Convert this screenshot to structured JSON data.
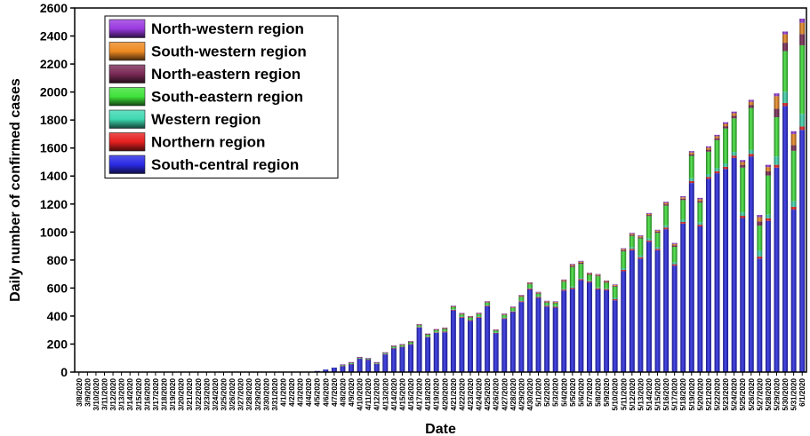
{
  "chart_data": {
    "type": "bar",
    "stacked": true,
    "xlabel": "Date",
    "ylabel": "Daily number of confirmed cases",
    "ylim": [
      0,
      2600
    ],
    "yticks": [
      0,
      200,
      400,
      600,
      800,
      1000,
      1200,
      1400,
      1600,
      1800,
      2000,
      2200,
      2400,
      2600
    ],
    "legend_position": "top-left",
    "categories": [
      "3/8/2020",
      "3/9/2020",
      "3/10/2020",
      "3/11/2020",
      "3/12/2020",
      "3/13/2020",
      "3/14/2020",
      "3/15/2020",
      "3/16/2020",
      "3/17/2020",
      "3/18/2020",
      "3/19/2020",
      "3/20/2020",
      "3/21/2020",
      "3/22/2020",
      "3/23/2020",
      "3/24/2020",
      "3/25/2020",
      "3/26/2020",
      "3/27/2020",
      "3/28/2020",
      "3/29/2020",
      "3/30/2020",
      "3/31/2020",
      "4/1/2020",
      "4/2/2020",
      "4/3/2020",
      "4/4/2020",
      "4/5/2020",
      "4/6/2020",
      "4/7/2020",
      "4/8/2020",
      "4/9/2020",
      "4/10/2020",
      "4/11/2020",
      "4/12/2020",
      "4/13/2020",
      "4/14/2020",
      "4/15/2020",
      "4/16/2020",
      "4/17/2020",
      "4/18/2020",
      "4/19/2020",
      "4/20/2020",
      "4/21/2020",
      "4/22/2020",
      "4/23/2020",
      "4/24/2020",
      "4/25/2020",
      "4/26/2020",
      "4/27/2020",
      "4/28/2020",
      "4/29/2020",
      "4/30/2020",
      "5/1/2020",
      "5/2/2020",
      "5/3/2020",
      "5/4/2020",
      "5/5/2020",
      "5/6/2020",
      "5/7/2020",
      "5/8/2020",
      "5/9/2020",
      "5/10/2020",
      "5/11/2020",
      "5/12/2020",
      "5/13/2020",
      "5/14/2020",
      "5/15/2020",
      "5/16/2020",
      "5/17/2020",
      "5/18/2020",
      "5/19/2020",
      "5/20/2020",
      "5/21/2020",
      "5/22/2020",
      "5/23/2020",
      "5/24/2020",
      "5/25/2020",
      "5/26/2020",
      "5/27/2020",
      "5/28/2020",
      "5/29/2020",
      "5/30/2020",
      "5/31/2020",
      "6/1/2020"
    ],
    "series": [
      {
        "name": "South-central region",
        "color": "#2a2ae6",
        "values": [
          0,
          0,
          0,
          0,
          0,
          0,
          0,
          0,
          0,
          0,
          0,
          0,
          0,
          0,
          0,
          0,
          0,
          0,
          0,
          0,
          0,
          0,
          0,
          0,
          0,
          0,
          0,
          2,
          8,
          18,
          32,
          42,
          55,
          96,
          88,
          58,
          126,
          168,
          178,
          196,
          318,
          248,
          280,
          284,
          440,
          388,
          366,
          388,
          470,
          276,
          380,
          428,
          500,
          590,
          530,
          468,
          460,
          582,
          594,
          656,
          640,
          590,
          584,
          512,
          720,
          870,
          810,
          930,
          870,
          1020,
          760,
          1060,
          1350,
          1040,
          1380,
          1420,
          1450,
          1530,
          1100,
          1540,
          810,
          1080,
          1460,
          1900,
          1160,
          1730
        ]
      },
      {
        "name": "Northern region",
        "color": "#e62020",
        "values": [
          0,
          0,
          0,
          0,
          0,
          0,
          0,
          0,
          0,
          0,
          0,
          0,
          0,
          0,
          0,
          0,
          0,
          0,
          0,
          0,
          0,
          0,
          0,
          0,
          0,
          0,
          0,
          0,
          0,
          0,
          0,
          2,
          3,
          2,
          2,
          2,
          3,
          3,
          3,
          4,
          4,
          4,
          4,
          5,
          5,
          5,
          5,
          5,
          5,
          4,
          5,
          5,
          6,
          6,
          6,
          6,
          6,
          7,
          8,
          8,
          8,
          8,
          8,
          8,
          10,
          10,
          10,
          10,
          10,
          12,
          10,
          12,
          14,
          12,
          14,
          14,
          16,
          16,
          16,
          18,
          16,
          18,
          20,
          22,
          20,
          24
        ]
      },
      {
        "name": "Western region",
        "color": "#3ed8b0",
        "values": [
          0,
          0,
          0,
          0,
          0,
          0,
          0,
          0,
          0,
          0,
          0,
          0,
          0,
          0,
          0,
          0,
          0,
          0,
          0,
          0,
          0,
          0,
          0,
          0,
          0,
          0,
          0,
          0,
          0,
          0,
          0,
          2,
          2,
          2,
          2,
          2,
          2,
          3,
          3,
          3,
          3,
          3,
          3,
          4,
          4,
          4,
          4,
          4,
          4,
          3,
          4,
          4,
          5,
          5,
          5,
          5,
          5,
          6,
          8,
          8,
          6,
          6,
          6,
          10,
          12,
          12,
          14,
          14,
          14,
          16,
          14,
          16,
          20,
          18,
          20,
          22,
          24,
          26,
          24,
          28,
          40,
          26,
          60,
          80,
          40,
          90
        ]
      },
      {
        "name": "South-eastern region",
        "color": "#3fe23a",
        "values": [
          0,
          0,
          0,
          0,
          0,
          0,
          0,
          0,
          0,
          0,
          0,
          0,
          0,
          0,
          0,
          0,
          0,
          0,
          0,
          0,
          0,
          0,
          0,
          0,
          0,
          0,
          0,
          0,
          0,
          0,
          0,
          4,
          6,
          3,
          3,
          4,
          5,
          8,
          8,
          10,
          10,
          12,
          12,
          14,
          14,
          14,
          14,
          16,
          16,
          14,
          18,
          20,
          26,
          26,
          18,
          16,
          20,
          50,
          140,
          100,
          40,
          80,
          40,
          80,
          120,
          80,
          120,
          160,
          100,
          140,
          110,
          140,
          160,
          140,
          160,
          200,
          250,
          240,
          320,
          300,
          180,
          280,
          280,
          290,
          360,
          490
        ]
      },
      {
        "name": "North-eastern region",
        "color": "#7a2a55",
        "values": [
          0,
          0,
          0,
          0,
          0,
          0,
          0,
          0,
          0,
          0,
          0,
          0,
          0,
          0,
          0,
          0,
          0,
          0,
          0,
          0,
          0,
          0,
          0,
          0,
          0,
          0,
          0,
          0,
          0,
          0,
          0,
          2,
          2,
          2,
          2,
          2,
          2,
          3,
          3,
          3,
          3,
          3,
          3,
          4,
          4,
          4,
          4,
          4,
          4,
          3,
          4,
          4,
          5,
          5,
          5,
          5,
          5,
          6,
          8,
          8,
          6,
          6,
          6,
          6,
          8,
          8,
          8,
          8,
          8,
          10,
          10,
          10,
          12,
          12,
          14,
          14,
          16,
          18,
          20,
          22,
          30,
          30,
          60,
          60,
          40,
          80
        ]
      },
      {
        "name": "South-western region",
        "color": "#ee8a22",
        "values": [
          0,
          0,
          0,
          0,
          0,
          0,
          0,
          0,
          0,
          0,
          0,
          0,
          0,
          0,
          0,
          0,
          0,
          0,
          0,
          0,
          0,
          0,
          0,
          0,
          0,
          0,
          0,
          0,
          0,
          0,
          0,
          2,
          2,
          2,
          2,
          2,
          2,
          3,
          3,
          3,
          3,
          3,
          3,
          4,
          4,
          4,
          4,
          4,
          4,
          3,
          4,
          4,
          5,
          5,
          5,
          5,
          5,
          6,
          8,
          8,
          6,
          6,
          6,
          6,
          8,
          8,
          8,
          8,
          8,
          10,
          10,
          10,
          12,
          12,
          14,
          14,
          16,
          18,
          20,
          22,
          30,
          30,
          90,
          60,
          80,
          80
        ]
      },
      {
        "name": "North-western region",
        "color": "#9a3ae0",
        "values": [
          0,
          0,
          0,
          0,
          0,
          0,
          0,
          0,
          0,
          0,
          0,
          0,
          0,
          0,
          0,
          0,
          0,
          0,
          0,
          0,
          0,
          0,
          0,
          0,
          0,
          0,
          0,
          0,
          0,
          0,
          0,
          1,
          1,
          1,
          1,
          1,
          1,
          2,
          2,
          2,
          2,
          2,
          2,
          3,
          3,
          3,
          3,
          3,
          3,
          2,
          3,
          3,
          4,
          4,
          4,
          4,
          4,
          4,
          6,
          6,
          4,
          4,
          4,
          4,
          6,
          6,
          6,
          6,
          6,
          8,
          8,
          8,
          10,
          10,
          10,
          10,
          12,
          12,
          14,
          14,
          16,
          16,
          20,
          20,
          20,
          30
        ]
      }
    ],
    "legend_order": [
      "North-western region",
      "South-western region",
      "North-eastern region",
      "South-eastern region",
      "Western region",
      "Northern region",
      "South-central region"
    ]
  }
}
